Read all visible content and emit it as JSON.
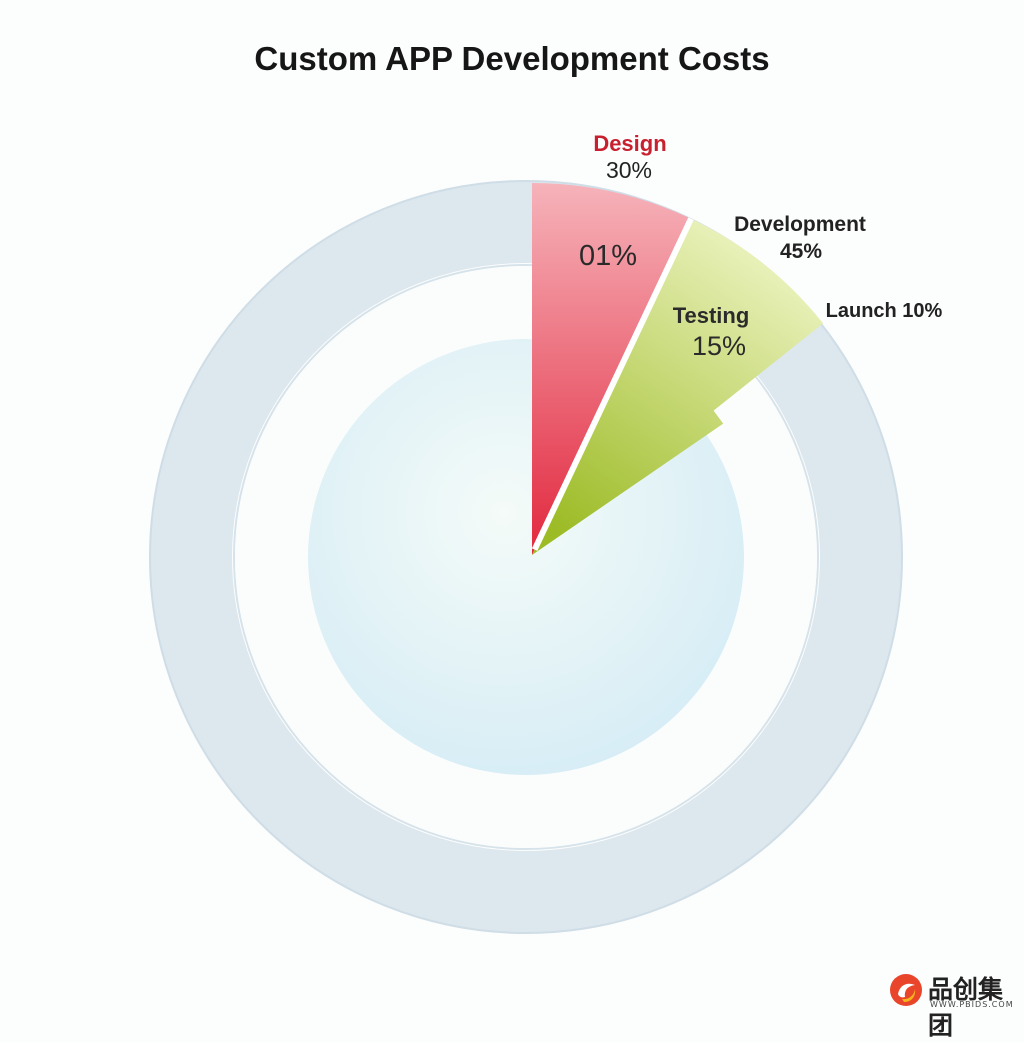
{
  "chart_data": {
    "type": "pie",
    "title": "Custom APP Development Costs",
    "slices": [
      {
        "name": "Design",
        "name_label": "Design",
        "value_label": "30%",
        "inner_label": "01%",
        "value": 30,
        "color": "#e63b4f"
      },
      {
        "name": "Development",
        "name_label": "Development",
        "value_label": "45%",
        "value": 45
      },
      {
        "name": "Testing",
        "name_label": "Testing",
        "value_label": "15%",
        "value": 15,
        "color": "#a5c23a"
      },
      {
        "name": "Launch",
        "name_label": "Launch 10%",
        "value": 10
      }
    ]
  },
  "colors": {
    "design": "#e63b4f",
    "design_light": "#f4a6ae",
    "testing": "#a5c23a",
    "testing_light": "#eaf1b8",
    "ring": "#dde8ef",
    "ring_inner": "#d8ecf4",
    "design_label": "#c8202f"
  },
  "watermark": {
    "mark": "品创集团",
    "url": "WWW.PBIDS.COM",
    "icon": "flame-logo-icon"
  }
}
